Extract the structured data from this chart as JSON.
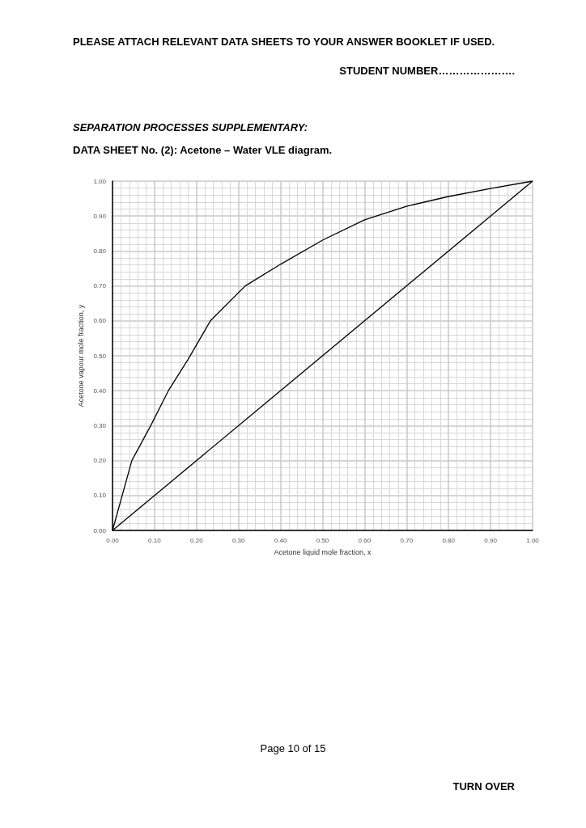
{
  "chart_data": {
    "type": "line",
    "title": "DATA SHEET No. (2):  Acetone – Water VLE diagram.",
    "subtitle": "SEPARATION PROCESSES SUPPLEMENTARY:",
    "annotations": [
      "PLEASE ATTACH RELEVANT DATA SHEETS TO YOUR ANSWER BOOKLET IF USED.",
      "STUDENT NUMBER………………….",
      "Page 10 of 15",
      "TURN OVER"
    ],
    "xlabel": "Acetone liquid mole fraction, x",
    "ylabel": "Acetone vapour mole fraction, y",
    "series": [
      {
        "color": "#000000",
        "x": [
          0,
          0.046,
          0.091,
          0.133,
          0.18,
          0.233,
          0.316,
          0.4,
          0.5,
          0.6,
          0.7,
          0.8,
          0.9,
          1.0
        ],
        "values": [
          0,
          0.2,
          0.3,
          0.4,
          0.49,
          0.6,
          0.7,
          0.762,
          0.831,
          0.889,
          0.928,
          0.956,
          0.979,
          1.0
        ]
      },
      {
        "color": "#000000",
        "x": [
          0,
          1.0
        ],
        "values": [
          0,
          1.0
        ]
      }
    ],
    "xlim": [
      0,
      1
    ],
    "ylim": [
      0,
      1
    ],
    "xticks": [
      {
        "value": 0,
        "label": "0.00"
      },
      {
        "value": 0.1,
        "label": "0.10"
      },
      {
        "value": 0.2,
        "label": "0.20"
      },
      {
        "value": 0.3,
        "label": "0.30"
      },
      {
        "value": 0.4,
        "label": "0.40"
      },
      {
        "value": 0.5,
        "label": "0.50"
      },
      {
        "value": 0.6,
        "label": "0.60"
      },
      {
        "value": 0.7,
        "label": "0.70"
      },
      {
        "value": 0.8,
        "label": "0.80"
      },
      {
        "value": 0.9,
        "label": "0.90"
      },
      {
        "value": 1,
        "label": "1.00"
      }
    ],
    "yticks": [
      {
        "value": 0,
        "label": "0.00"
      },
      {
        "value": 0.1,
        "label": "0.10"
      },
      {
        "value": 0.2,
        "label": "0.20"
      },
      {
        "value": 0.3,
        "label": "0.30"
      },
      {
        "value": 0.4,
        "label": "0.40"
      },
      {
        "value": 0.5,
        "label": "0.50"
      },
      {
        "value": 0.6,
        "label": "0.60"
      },
      {
        "value": 0.7,
        "label": "0.70"
      },
      {
        "value": 0.8,
        "label": "0.80"
      },
      {
        "value": 0.9,
        "label": "0.90"
      },
      {
        "value": 1,
        "label": "1.00"
      }
    ],
    "grid": true,
    "marker": "none",
    "line_style": "solid"
  }
}
